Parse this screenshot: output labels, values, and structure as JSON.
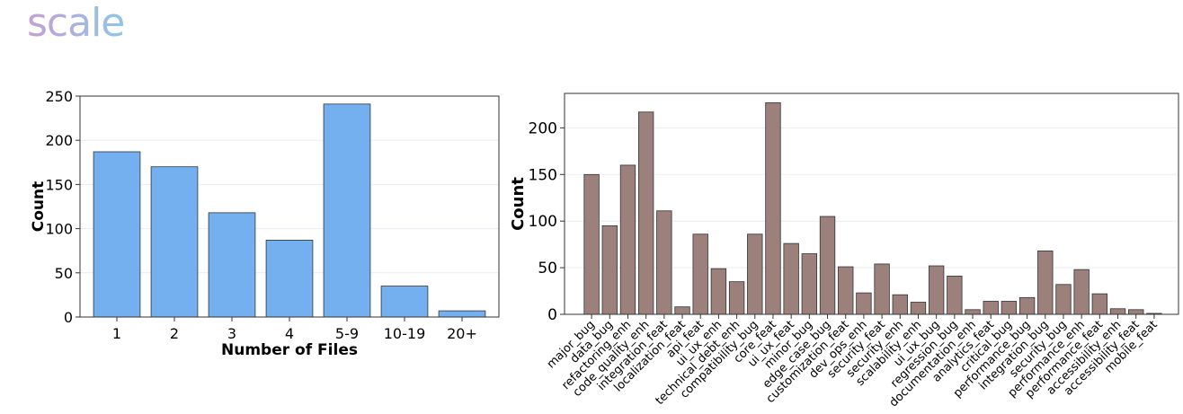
{
  "logo": {
    "text": "scale"
  },
  "colors": {
    "bar_blue": "#74b0f0",
    "bar_brown": "#9b807b",
    "logo_start": "#c79fd2",
    "logo_end": "#8dc6ea"
  },
  "chart_data": [
    {
      "type": "bar",
      "title": "",
      "xlabel": "Number of Files",
      "ylabel": "Count",
      "categories": [
        "1",
        "2",
        "3",
        "4",
        "5-9",
        "10-19",
        "20+"
      ],
      "values": [
        187,
        170,
        118,
        87,
        241,
        35,
        7
      ],
      "ylim": [
        0,
        250
      ],
      "yticks": [
        0,
        50,
        100,
        150,
        200,
        250
      ],
      "grid": true
    },
    {
      "type": "bar",
      "title": "",
      "xlabel": "",
      "ylabel": "Count",
      "categories": [
        "major_bug",
        "data_bug",
        "refactoring_enh",
        "code_quality_enh",
        "integration_feat",
        "localization_feat",
        "api_feat",
        "ui_ux_enh",
        "technical_debt_enh",
        "compatibility_bug",
        "core_feat",
        "ui_ux_feat",
        "minor_bug",
        "edge_case_bug",
        "customization_feat",
        "dev_ops_enh",
        "security_feat",
        "security_enh",
        "scalability_enh",
        "ui_ux_bug",
        "regression_bug",
        "documentation_enh",
        "analytics_feat",
        "critical_bug",
        "performance_bug",
        "integration_bug",
        "security_bug",
        "performance_enh",
        "performance_feat",
        "accessibility_enh",
        "accessibility_feat",
        "mobile_feat"
      ],
      "values": [
        150,
        95,
        160,
        217,
        111,
        8,
        86,
        49,
        35,
        86,
        227,
        76,
        65,
        105,
        51,
        23,
        54,
        21,
        13,
        52,
        41,
        5,
        14,
        14,
        18,
        68,
        32,
        48,
        22,
        6,
        5,
        1
      ],
      "ylim": [
        0,
        237
      ],
      "yticks": [
        0,
        50,
        100,
        150,
        200
      ],
      "grid": true
    }
  ]
}
